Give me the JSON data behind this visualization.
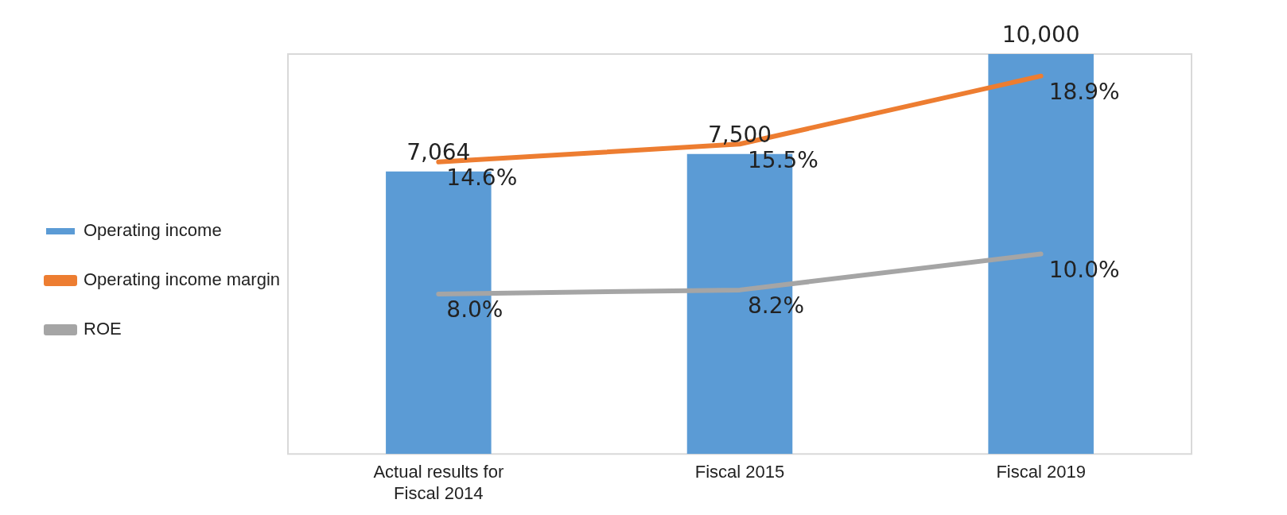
{
  "chart_data": {
    "type": "bar",
    "categories": [
      "Actual results for Fiscal 2014",
      "Fiscal 2015",
      "Fiscal 2019"
    ],
    "series": [
      {
        "name": "Operating income",
        "color": "#5b9bd5",
        "values": [
          7064,
          7500,
          10000
        ],
        "value_labels": [
          "7,064",
          "7,500",
          "10,000"
        ]
      },
      {
        "name": "Operating income margin",
        "type": "line",
        "axis": "y2",
        "color": "#ed7d31",
        "values": [
          14.6,
          15.5,
          18.9
        ],
        "value_labels": [
          "14.6%",
          "15.5%",
          "18.9%"
        ]
      },
      {
        "name": "ROE",
        "type": "line",
        "axis": "y2",
        "color": "#a5a5a5",
        "values": [
          8.0,
          8.2,
          10.0
        ],
        "value_labels": [
          "8.0%",
          "8.2%",
          "10.0%"
        ]
      }
    ],
    "ylim": [
      0,
      10000
    ],
    "tick_labels": "x",
    "grid": false,
    "legend": "left",
    "marker": "none"
  }
}
